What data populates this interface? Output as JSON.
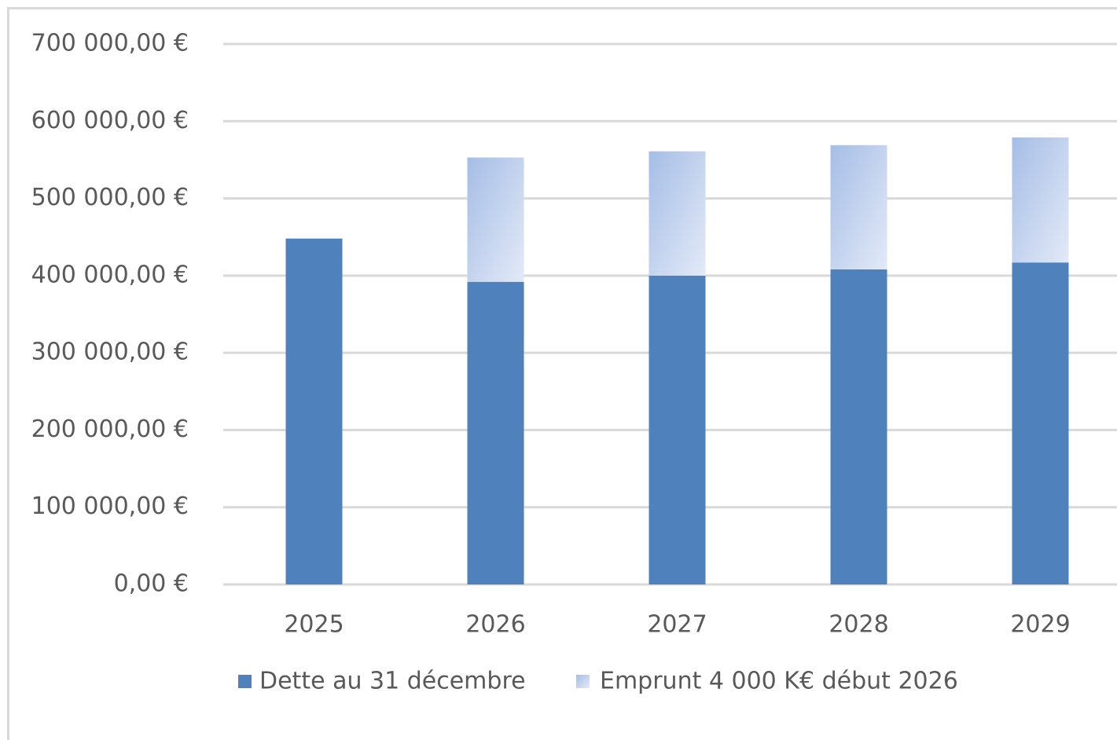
{
  "chart_data": {
    "type": "stacked_bar",
    "categories": [
      "2025",
      "2026",
      "2027",
      "2028",
      "2029"
    ],
    "series": [
      {
        "name": "Dette au 31 décembre",
        "color": "#4f81bd",
        "values": [
          448000,
          392000,
          400000,
          408000,
          417000
        ]
      },
      {
        "name": "Emprunt 4 000 K€ début 2026",
        "color": "#b4c7e7",
        "values": [
          null,
          161000,
          161000,
          161000,
          162000
        ]
      }
    ],
    "ylim": [
      0,
      700000
    ],
    "yticks": [
      {
        "value": 0,
        "label": "0,00 €"
      },
      {
        "value": 100000,
        "label": "100 000,00 €"
      },
      {
        "value": 200000,
        "label": "200 000,00 €"
      },
      {
        "value": 300000,
        "label": "300 000,00 €"
      },
      {
        "value": 400000,
        "label": "400 000,00 €"
      },
      {
        "value": 500000,
        "label": "500 000,00 €"
      },
      {
        "value": 600000,
        "label": "600 000,00 €"
      },
      {
        "value": 700000,
        "label": "700 000,00 €"
      }
    ],
    "grid": true,
    "legend": "bottom"
  }
}
